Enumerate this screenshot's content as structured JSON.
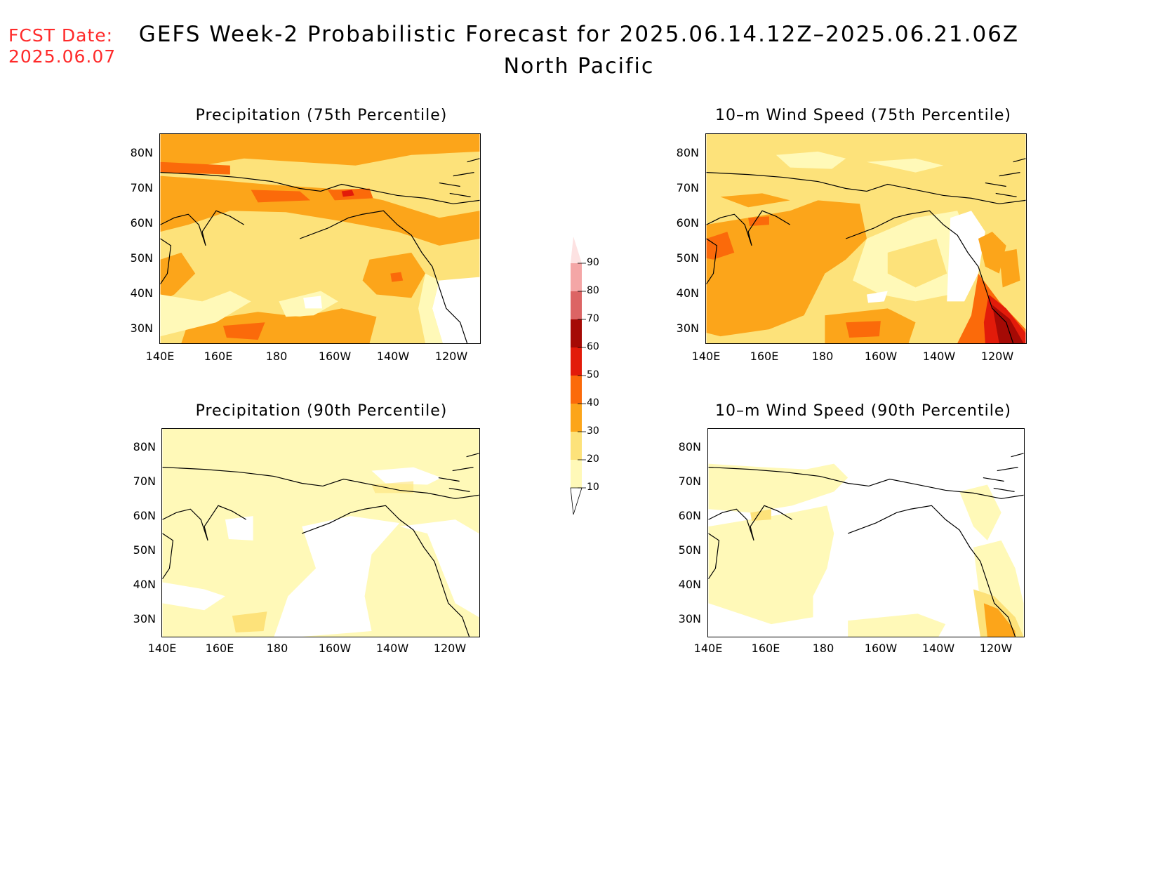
{
  "header": {
    "fcst_label": "FCST Date:",
    "fcst_date": "2025.06.07",
    "title": "GEFS Week-2 Probabilistic Forecast for 2025.06.14.12Z–2025.06.21.06Z",
    "subtitle": "North Pacific"
  },
  "panels": [
    {
      "title": "Precipitation (75th Percentile)"
    },
    {
      "title": "10–m Wind Speed (75th Percentile)"
    },
    {
      "title": "Precipitation (90th Percentile)"
    },
    {
      "title": "10–m Wind Speed (90th Percentile)"
    }
  ],
  "map_axes": {
    "lat_labels": [
      "80N",
      "70N",
      "60N",
      "50N",
      "40N",
      "30N"
    ],
    "lon_labels": [
      "140E",
      "160E",
      "180",
      "160W",
      "140W",
      "120W"
    ]
  },
  "colorbar": {
    "levels": [
      "10",
      "20",
      "30",
      "40",
      "50",
      "60",
      "70",
      "80",
      "90"
    ],
    "colors": [
      "#fff9b8",
      "#fde27a",
      "#fca51a",
      "#fb6a0a",
      "#e21b0a",
      "#a50a05",
      "#dc6464",
      "#f4a6a6",
      "#fde2e2"
    ]
  },
  "colors": {
    "fcst_label": "#ff2a2a",
    "coastline": "#000000"
  }
}
